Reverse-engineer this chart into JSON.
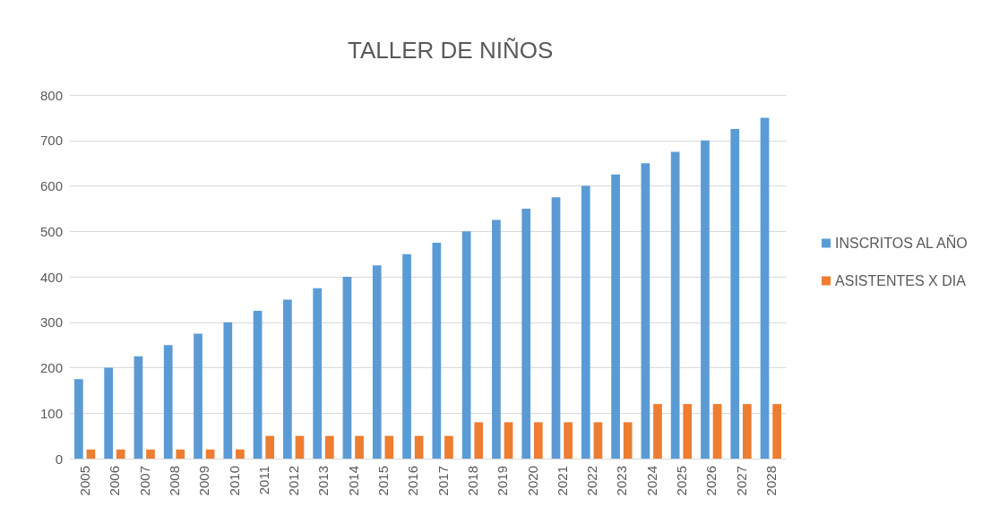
{
  "chart_data": {
    "type": "bar",
    "title": "TALLER DE NIÑOS",
    "categories": [
      "2005",
      "2006",
      "2007",
      "2008",
      "2009",
      "2010",
      "2011",
      "2012",
      "2013",
      "2014",
      "2015",
      "2016",
      "2017",
      "2018",
      "2019",
      "2020",
      "2021",
      "2022",
      "2023",
      "2024",
      "2025",
      "2026",
      "2027",
      "2028"
    ],
    "series": [
      {
        "name": "INSCRITOS AL AÑO",
        "color": "#5b9bd5",
        "values": [
          175,
          200,
          225,
          250,
          275,
          300,
          325,
          350,
          375,
          400,
          425,
          450,
          475,
          500,
          525,
          550,
          575,
          600,
          625,
          650,
          675,
          700,
          725,
          750
        ]
      },
      {
        "name": "ASISTENTES X DIA",
        "color": "#ed7d31",
        "values": [
          20,
          20,
          20,
          20,
          20,
          20,
          50,
          50,
          50,
          50,
          50,
          50,
          50,
          80,
          80,
          80,
          80,
          80,
          80,
          120,
          120,
          120,
          120,
          120
        ]
      }
    ],
    "ylim": [
      0,
      800
    ],
    "yticks": [
      0,
      100,
      200,
      300,
      400,
      500,
      600,
      700,
      800
    ],
    "grid": "y",
    "legend": "right"
  }
}
